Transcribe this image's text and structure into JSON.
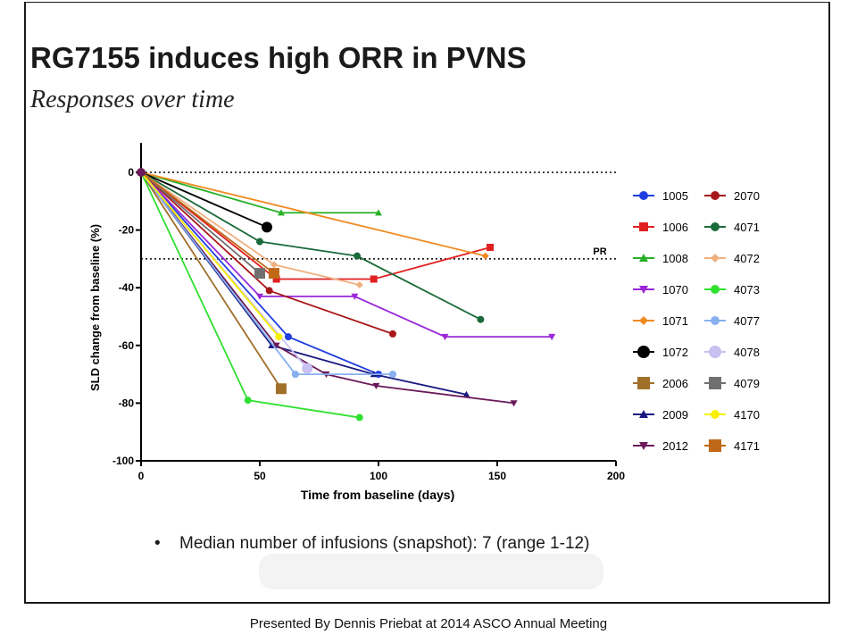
{
  "slide": {
    "title": "RG7155 induces high ORR in PVNS",
    "subtitle": "Responses over time",
    "bullet": "Median number of infusions (snapshot): 7 (range 1-12)",
    "footer": "Presented By Dennis Priebat at 2014 ASCO Annual Meeting"
  },
  "chart_data": {
    "type": "line",
    "title": "",
    "xlabel": "Time from baseline (days)",
    "ylabel": "SLD change from baseline (%)",
    "xlim": [
      0,
      200
    ],
    "ylim": [
      -100,
      0
    ],
    "xticks": [
      0,
      50,
      100,
      150,
      200
    ],
    "yticks": [
      0,
      -20,
      -40,
      -60,
      -80,
      -100
    ],
    "grid": false,
    "legend_position": "right",
    "reference_lines": [
      {
        "y": 0,
        "style": "dotted",
        "label": ""
      },
      {
        "y": -30,
        "style": "dotted",
        "label": "PR"
      }
    ],
    "series": [
      {
        "name": "1005",
        "color": "#1f3fe0",
        "marker": "circle",
        "x": [
          0,
          62,
          100
        ],
        "y": [
          0,
          -57,
          -70
        ]
      },
      {
        "name": "1006",
        "color": "#e02020",
        "marker": "square",
        "x": [
          0,
          57,
          98,
          147
        ],
        "y": [
          0,
          -37,
          -37,
          -26
        ]
      },
      {
        "name": "1008",
        "color": "#28b028",
        "marker": "triangle",
        "x": [
          0,
          59,
          100
        ],
        "y": [
          0,
          -14,
          -14
        ]
      },
      {
        "name": "1070",
        "color": "#9a28d8",
        "marker": "triangle-down",
        "x": [
          0,
          50,
          90,
          128,
          173
        ],
        "y": [
          0,
          -43,
          -43,
          -57,
          -57
        ]
      },
      {
        "name": "1071",
        "color": "#f08a20",
        "marker": "diamond",
        "x": [
          0,
          145
        ],
        "y": [
          0,
          -29
        ]
      },
      {
        "name": "1072",
        "color": "#000000",
        "marker": "circle",
        "x": [
          0,
          53
        ],
        "y": [
          0,
          -19
        ]
      },
      {
        "name": "2006",
        "color": "#a0702a",
        "marker": "square",
        "x": [
          0,
          59
        ],
        "y": [
          0,
          -75
        ]
      },
      {
        "name": "2009",
        "color": "#1a1a80",
        "marker": "triangle",
        "x": [
          0,
          55,
          98,
          137
        ],
        "y": [
          0,
          -60,
          -70,
          -77
        ]
      },
      {
        "name": "2012",
        "color": "#6a1a5a",
        "marker": "triangle-down",
        "x": [
          0,
          57,
          78,
          99,
          157
        ],
        "y": [
          0,
          -60,
          -70,
          -74,
          -80
        ]
      },
      {
        "name": "2070",
        "color": "#a81818",
        "marker": "circle",
        "x": [
          0,
          54,
          106
        ],
        "y": [
          0,
          -41,
          -56
        ]
      },
      {
        "name": "4071",
        "color": "#1a6a3a",
        "marker": "circle",
        "x": [
          0,
          50,
          91,
          143
        ],
        "y": [
          0,
          -24,
          -29,
          -51
        ]
      },
      {
        "name": "4072",
        "color": "#f0b080",
        "marker": "diamond",
        "x": [
          0,
          56,
          92
        ],
        "y": [
          0,
          -32,
          -39
        ]
      },
      {
        "name": "4073",
        "color": "#30e030",
        "marker": "circle",
        "x": [
          0,
          45,
          92
        ],
        "y": [
          0,
          -79,
          -85
        ]
      },
      {
        "name": "4077",
        "color": "#88b0f0",
        "marker": "star",
        "x": [
          0,
          65,
          106
        ],
        "y": [
          0,
          -70,
          -70
        ]
      },
      {
        "name": "4078",
        "color": "#c8c0f0",
        "marker": "circle",
        "x": [
          0,
          70
        ],
        "y": [
          0,
          -68
        ]
      },
      {
        "name": "4079",
        "color": "#707070",
        "marker": "square",
        "x": [
          0,
          50
        ],
        "y": [
          0,
          -35
        ]
      },
      {
        "name": "4170",
        "color": "#f8f000",
        "marker": "circle",
        "x": [
          0,
          58
        ],
        "y": [
          0,
          -57
        ]
      },
      {
        "name": "4171",
        "color": "#c06818",
        "marker": "square",
        "x": [
          0,
          56
        ],
        "y": [
          0,
          -35
        ]
      }
    ]
  }
}
